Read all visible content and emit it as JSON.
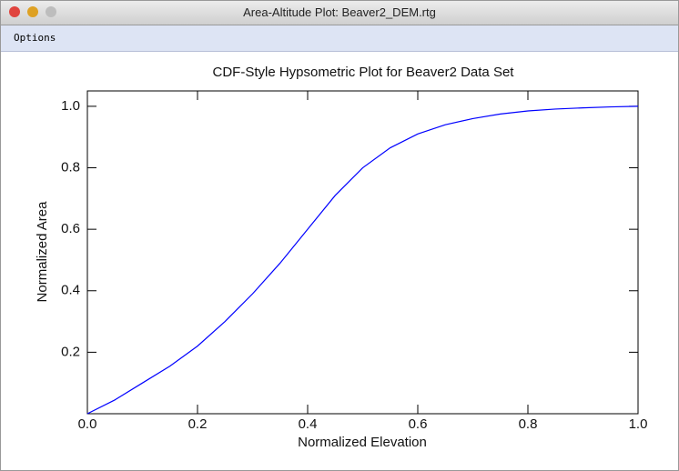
{
  "window": {
    "title": "Area-Altitude Plot: Beaver2_DEM.rtg",
    "menu": [
      "Options"
    ]
  },
  "chart_data": {
    "type": "line",
    "title": "CDF-Style Hypsometric Plot for Beaver2 Data Set",
    "x_label": "Normalized Elevation",
    "y_label": "Normalized Area",
    "x": [
      0,
      0.05,
      0.1,
      0.15,
      0.2,
      0.25,
      0.3,
      0.35,
      0.4,
      0.45,
      0.5,
      0.55,
      0.6,
      0.65,
      0.7,
      0.75,
      0.8,
      0.85,
      0.9,
      0.95,
      1
    ],
    "series": [
      {
        "color": "#0000ff",
        "values": [
          0,
          0.045,
          0.1,
          0.155,
          0.22,
          0.3,
          0.39,
          0.49,
          0.6,
          0.71,
          0.8,
          0.865,
          0.91,
          0.94,
          0.96,
          0.975,
          0.985,
          0.991,
          0.995,
          0.998,
          1
        ]
      }
    ],
    "xlim": [
      0,
      1
    ],
    "ylim": [
      0,
      1.05
    ],
    "xticks": [
      {
        "value": 0,
        "label": "0.0"
      },
      0.2,
      0.4,
      0.6,
      0.8,
      {
        "value": 1,
        "label": "1.0"
      }
    ],
    "yticks": [
      0.2,
      0.4,
      0.6,
      0.8,
      {
        "value": 1,
        "label": "1.0"
      }
    ]
  }
}
